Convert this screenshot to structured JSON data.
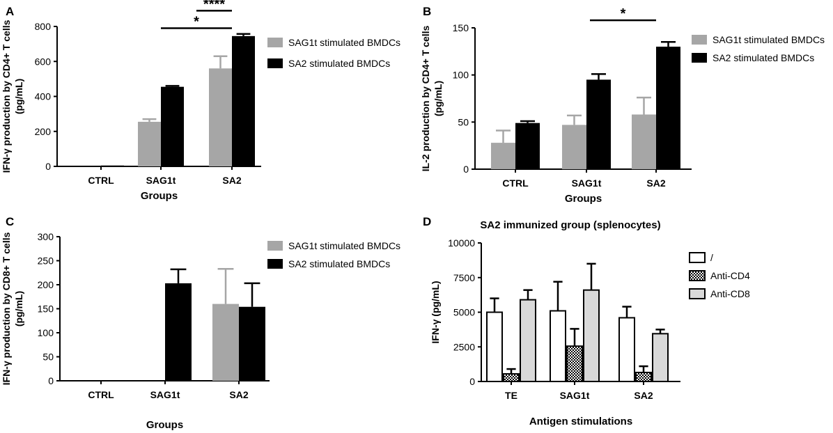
{
  "colors": {
    "series_gray": "#a6a6a6",
    "series_black": "#000000",
    "open_white": "#ffffff",
    "anti_cd8_gray": "#d9d9d9"
  },
  "chart_data": [
    {
      "panel": "A",
      "type": "bar",
      "title": "",
      "ylabel": [
        "IFN-γ production by CD4+ T cells",
        "(pg/mL)"
      ],
      "xlabel": "Groups",
      "categories": [
        "CTRL",
        "SAG1t",
        "SA2"
      ],
      "ylim": [
        0,
        800
      ],
      "yticks": [
        0,
        200,
        400,
        600,
        800
      ],
      "legend_position": "top-right",
      "series": [
        {
          "name": "SAG1t stimulated BMDCs",
          "fill": "gray",
          "values": [
            0,
            255,
            560
          ],
          "errors": [
            0,
            15,
            70
          ]
        },
        {
          "name": "SA2 stimulated BMDCs",
          "fill": "black",
          "values": [
            5,
            455,
            745
          ],
          "errors": [
            0,
            5,
            12
          ]
        }
      ],
      "significance": [
        {
          "label": "*",
          "from": 1,
          "to": 2,
          "level": 790
        },
        {
          "label": "****",
          "from": 1.5,
          "to": 2.35,
          "level": 890
        }
      ]
    },
    {
      "panel": "B",
      "type": "bar",
      "title": "",
      "ylabel": [
        "IL-2 production by CD4+ T cells",
        "(pg/mL)"
      ],
      "xlabel": "Groups",
      "categories": [
        "CTRL",
        "SAG1t",
        "SA2"
      ],
      "ylim": [
        0,
        150
      ],
      "yticks": [
        0,
        50,
        100,
        150
      ],
      "legend_position": "top-right",
      "series": [
        {
          "name": "SAG1t stimulated BMDCs",
          "fill": "gray",
          "values": [
            28,
            47,
            58
          ],
          "errors": [
            13,
            10,
            18
          ]
        },
        {
          "name": "SA2 stimulated BMDCs",
          "fill": "black",
          "values": [
            49,
            95,
            130
          ],
          "errors": [
            2,
            6,
            5
          ]
        }
      ],
      "significance": [
        {
          "label": "*",
          "from": 1.05,
          "to": 2.2,
          "level": 158
        }
      ]
    },
    {
      "panel": "C",
      "type": "bar",
      "title": "",
      "ylabel": [
        "IFN-γ production by CD8+ T cells",
        "(pg/mL)"
      ],
      "xlabel": "Groups",
      "categories": [
        "CTRL",
        "SAG1t",
        "SA2"
      ],
      "ylim": [
        0,
        300
      ],
      "yticks": [
        0,
        50,
        100,
        150,
        200,
        250,
        300
      ],
      "legend_position": "top-right",
      "series": [
        {
          "name": "SAG1t stimulated BMDCs",
          "fill": "gray",
          "values": [
            0,
            0,
            160
          ],
          "errors": [
            0,
            0,
            73
          ]
        },
        {
          "name": "SA2 stimulated BMDCs",
          "fill": "black",
          "values": [
            0,
            203,
            154
          ],
          "errors": [
            0,
            29,
            49
          ]
        }
      ],
      "significance": []
    },
    {
      "panel": "D",
      "type": "bar",
      "title": "SA2 immunized group (splenocytes)",
      "ylabel": [
        "IFN-γ (pg/mL)"
      ],
      "xlabel": "Antigen stimulations",
      "categories": [
        "TE",
        "SAG1t",
        "SA2"
      ],
      "ylim": [
        0,
        10000
      ],
      "yticks": [
        0,
        2500,
        5000,
        7500,
        10000
      ],
      "legend_position": "top-right",
      "series": [
        {
          "name": "/",
          "fill": "white",
          "values": [
            5000,
            5100,
            4600
          ],
          "errors": [
            1000,
            2100,
            800
          ]
        },
        {
          "name": "Anti-CD4",
          "fill": "checker",
          "values": [
            550,
            2550,
            650
          ],
          "errors": [
            350,
            1250,
            450
          ]
        },
        {
          "name": "Anti-CD8",
          "fill": "light",
          "values": [
            5900,
            6600,
            3450
          ],
          "errors": [
            700,
            1900,
            300
          ]
        }
      ],
      "significance": []
    }
  ]
}
